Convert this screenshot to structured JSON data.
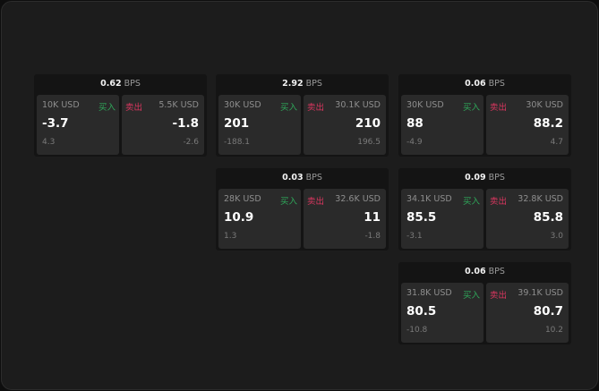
{
  "units": {
    "bps": "BPS",
    "buy": "买入",
    "sell": "卖出"
  },
  "colors": {
    "buy": "#2fa85a",
    "sell": "#d9365f"
  },
  "widgets": [
    {
      "spread": "0.62",
      "buy": {
        "size": "10K USD",
        "price": "-3.7",
        "change": "4.3"
      },
      "sell": {
        "size": "5.5K USD",
        "price": "-1.8",
        "change": "-2.6"
      }
    },
    {
      "spread": "2.92",
      "buy": {
        "size": "30K USD",
        "price": "201",
        "change": "-188.1"
      },
      "sell": {
        "size": "30.1K USD",
        "price": "210",
        "change": "196.5"
      }
    },
    {
      "spread": "0.06",
      "buy": {
        "size": "30K USD",
        "price": "88",
        "change": "-4.9"
      },
      "sell": {
        "size": "30K USD",
        "price": "88.2",
        "change": "4.7"
      }
    },
    {
      "spread": "0.03",
      "buy": {
        "size": "28K USD",
        "price": "10.9",
        "change": "1.3"
      },
      "sell": {
        "size": "32.6K USD",
        "price": "11",
        "change": "-1.8"
      }
    },
    {
      "spread": "0.09",
      "buy": {
        "size": "34.1K USD",
        "price": "85.5",
        "change": "-3.1"
      },
      "sell": {
        "size": "32.8K USD",
        "price": "85.8",
        "change": "3.0"
      }
    },
    {
      "spread": "0.06",
      "buy": {
        "size": "31.8K USD",
        "price": "80.5",
        "change": "-10.8"
      },
      "sell": {
        "size": "39.1K USD",
        "price": "80.7",
        "change": "10.2"
      }
    }
  ]
}
